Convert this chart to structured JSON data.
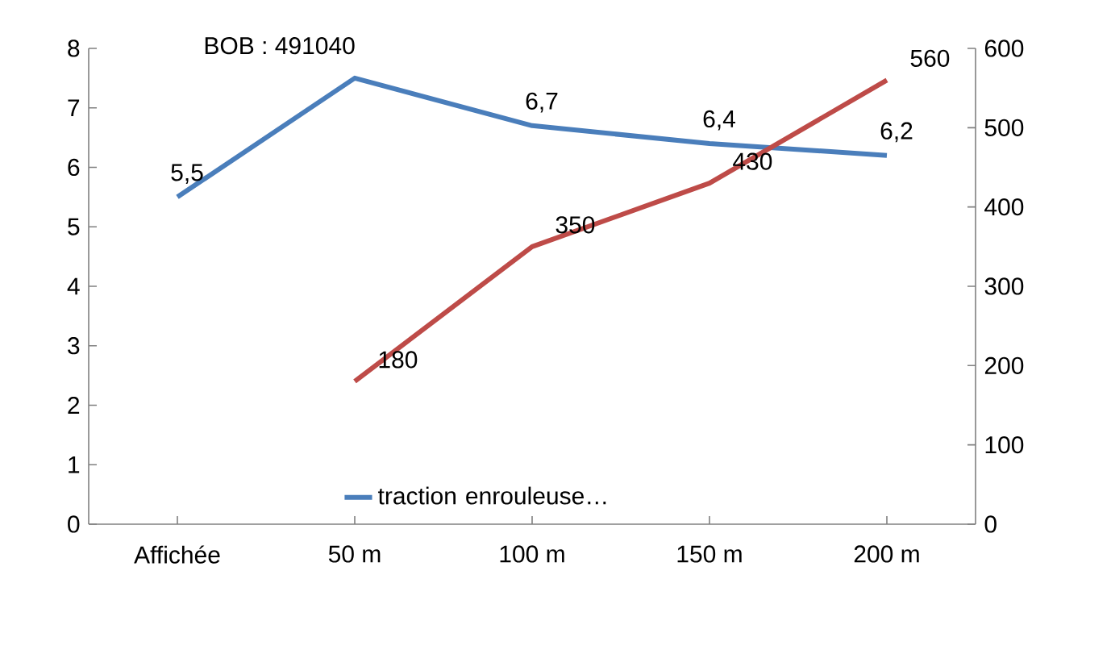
{
  "chart_data": {
    "type": "line",
    "categories": [
      "Affichée",
      "50 m",
      "100 m",
      "150 m",
      "200 m"
    ],
    "series": [
      {
        "name": "traction enrouleuse…",
        "color": "#4a7ebb",
        "values": [
          5.5,
          7.5,
          6.7,
          6.4,
          6.2
        ],
        "value_labels": [
          "5,5",
          null,
          "6,7",
          "6,4",
          "6,2"
        ]
      },
      {
        "color": "#be4b48",
        "axis": "y2",
        "values": [
          null,
          180,
          350,
          430,
          560
        ],
        "value_labels": [
          null,
          "180",
          "350",
          "430",
          "560"
        ]
      }
    ],
    "ylim": [
      0,
      8
    ],
    "yticks": [
      0,
      1,
      2,
      3,
      4,
      5,
      6,
      7,
      8
    ],
    "y2lim": [
      0,
      600
    ],
    "y2ticks": [
      0,
      100,
      200,
      300,
      400,
      500,
      600
    ],
    "annotations": [
      "BOB : 491040"
    ],
    "legend": "bottom"
  }
}
